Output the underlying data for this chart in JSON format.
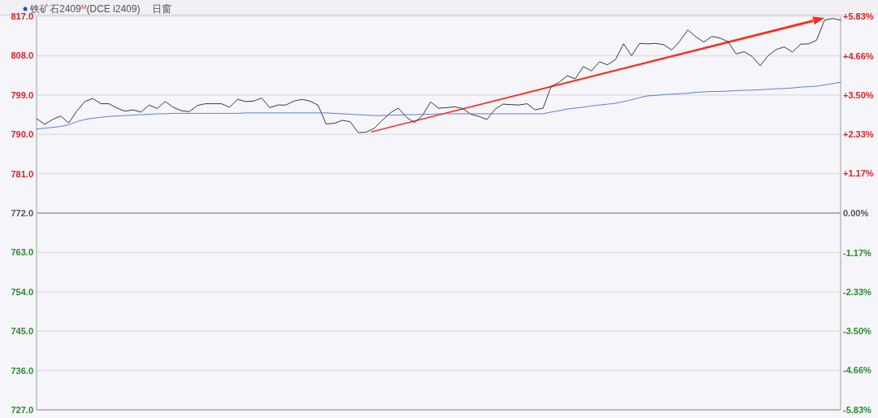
{
  "chart_data": {
    "type": "line",
    "title": "铁矿石2409$^{M}$(DCE i2409)",
    "subtitle": "日窗",
    "categories": [
      null,
      null,
      null,
      null,
      null,
      null,
      null,
      null,
      null,
      null,
      null,
      null,
      null,
      null,
      null,
      null,
      null,
      null,
      null,
      null,
      null,
      null,
      null,
      null,
      null,
      null,
      null,
      null,
      null,
      null,
      null,
      null,
      null,
      null,
      null,
      null,
      null,
      null,
      null,
      null,
      null,
      null,
      null,
      null,
      null,
      null,
      null,
      null,
      null,
      null,
      null,
      null,
      null,
      null,
      null,
      null,
      null,
      null,
      null,
      null,
      null,
      null,
      null,
      null,
      null,
      null,
      null,
      null,
      null,
      null,
      null,
      null,
      null,
      null,
      null,
      null,
      null,
      null,
      null,
      null,
      null,
      null,
      null,
      null,
      null,
      null,
      null,
      null,
      null,
      null,
      null,
      null,
      null,
      null,
      null,
      null,
      null,
      null,
      null,
      null,
      null
    ],
    "ylim": [
      727,
      817
    ],
    "yticks": [
      {
        "value": 727,
        "label": "727.0"
      },
      {
        "value": 736,
        "label": "736.0"
      },
      {
        "value": 745,
        "label": "745.0"
      },
      {
        "value": 754,
        "label": "754.0"
      },
      {
        "value": 763,
        "label": "763.0"
      },
      {
        "value": 772,
        "label": "772.0"
      },
      {
        "value": 781,
        "label": "781.0"
      },
      {
        "value": 790,
        "label": "790.0"
      },
      {
        "value": 799,
        "label": "799.0"
      },
      {
        "value": 808,
        "label": "808.0"
      },
      {
        "value": 817,
        "label": "817.0"
      }
    ],
    "y2lim": [
      -5.83,
      5.83
    ],
    "y2ticks": [
      {
        "value": -5.83,
        "label": "-5.83%"
      },
      {
        "value": -4.66,
        "label": "-4.66%"
      },
      {
        "value": -3.5,
        "label": "-3.50%"
      },
      {
        "value": -2.33,
        "label": "-2.33%"
      },
      {
        "value": -1.17,
        "label": "-1.17%"
      },
      {
        "value": 0,
        "label": "0.00%"
      },
      {
        "value": 1.17,
        "label": "+1.17%"
      },
      {
        "value": 2.33,
        "label": "+2.33%"
      },
      {
        "value": 3.5,
        "label": "+3.50%"
      },
      {
        "value": 4.66,
        "label": "+4.66%"
      },
      {
        "value": 5.83,
        "label": "+5.83%"
      }
    ],
    "tick_labels": "y",
    "grid": "y",
    "ref_lines": [
      {
        "axis": "y",
        "value": 772,
        "label": null,
        "color": "#b0b0b0"
      }
    ],
    "series": [
      {
        "color": "#3a3a3a",
        "values": [
          793.6,
          792.3,
          793.4,
          794.2,
          792.6,
          795.3,
          797.5,
          798.2,
          797.0,
          797.0,
          796.0,
          795.3,
          795.6,
          795.1,
          796.7,
          795.9,
          797.5,
          796.2,
          795.4,
          795.2,
          796.6,
          797.0,
          797.0,
          797.0,
          796.2,
          798.0,
          797.5,
          797.6,
          798.3,
          796.1,
          796.7,
          796.7,
          797.6,
          798.0,
          797.6,
          796.7,
          792.4,
          792.5,
          793.2,
          792.9,
          790.4,
          790.5,
          791.4,
          793.2,
          794.9,
          796.0,
          793.9,
          792.7,
          794.3,
          797.4,
          796.0,
          796.1,
          796.3,
          795.9,
          794.6,
          794.1,
          793.4,
          795.7,
          796.9,
          796.8,
          796.7,
          797.0,
          795.6,
          796.0,
          801.0,
          801.9,
          803.4,
          802.7,
          805.5,
          804.5,
          806.6,
          805.9,
          807.1,
          810.7,
          808.0,
          810.8,
          810.7,
          810.8,
          810.5,
          809.3,
          811.3,
          813.9,
          812.3,
          811.1,
          812.4,
          812.0,
          811.2,
          808.4,
          808.9,
          807.8,
          805.7,
          808.0,
          809.4,
          810.0,
          808.8,
          810.6,
          810.7,
          811.5,
          816.1,
          816.5,
          816.1
        ]
      },
      {
        "color": "#5b7fd6",
        "values": [
          791.2,
          791.4,
          791.6,
          791.8,
          792.2,
          792.9,
          793.4,
          793.7,
          793.9,
          794.1,
          794.2,
          794.3,
          794.4,
          794.5,
          794.6,
          794.7,
          794.7,
          794.8,
          794.8,
          794.8,
          794.8,
          794.8,
          794.8,
          794.8,
          794.8,
          794.8,
          794.9,
          794.9,
          794.9,
          794.9,
          794.9,
          794.9,
          794.9,
          794.9,
          794.9,
          794.9,
          794.9,
          794.8,
          794.7,
          794.6,
          794.5,
          794.4,
          794.3,
          794.3,
          794.4,
          794.4,
          794.5,
          794.5,
          794.6,
          794.6,
          794.7,
          794.7,
          794.7,
          794.7,
          794.7,
          794.7,
          794.7,
          794.7,
          794.7,
          794.7,
          794.7,
          794.7,
          794.7,
          794.7,
          795.1,
          795.4,
          795.8,
          796.0,
          796.2,
          796.5,
          796.7,
          796.9,
          797.1,
          797.5,
          797.9,
          798.4,
          798.8,
          798.9,
          799.1,
          799.2,
          799.3,
          799.4,
          799.6,
          799.7,
          799.8,
          799.8,
          799.9,
          800.0,
          800.1,
          800.1,
          800.2,
          800.3,
          800.4,
          800.5,
          800.6,
          800.8,
          800.9,
          801.0,
          801.3,
          801.6,
          801.9
        ]
      }
    ]
  }
}
